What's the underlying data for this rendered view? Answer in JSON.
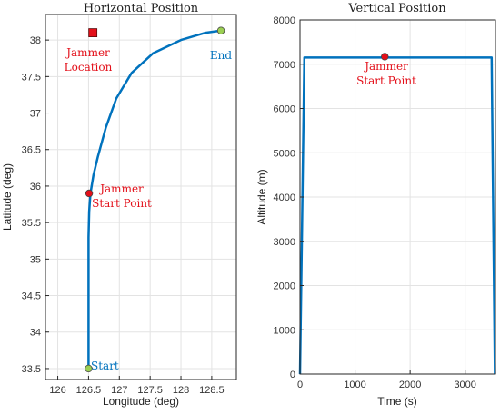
{
  "colors": {
    "line": "#0072BD",
    "jammer": "#E3101A",
    "end_marker": "#9BCF53",
    "grid": "#E3E3E3",
    "axes": "#262626"
  },
  "chart_data": [
    {
      "type": "line",
      "title": "Horizontal Position",
      "xlabel": "Longitude (deg)",
      "ylabel": "Latitude (deg)",
      "xlim": [
        125.8,
        128.9
      ],
      "ylim": [
        33.35,
        38.35
      ],
      "xticks": [
        "126",
        "126.5",
        "127",
        "127.5",
        "128",
        "128.5"
      ],
      "yticks": [
        "33.5",
        "34",
        "34.5",
        "35",
        "35.5",
        "36",
        "36.5",
        "37",
        "37.5",
        "38"
      ],
      "grid": true,
      "series": [
        {
          "x": [
            126.5,
            126.5,
            126.5,
            126.51,
            126.53,
            126.58,
            126.65,
            126.78,
            126.95,
            127.2,
            127.55,
            128.0,
            128.4,
            128.65
          ],
          "y": [
            33.5,
            34.5,
            35.3,
            35.65,
            35.9,
            36.15,
            36.4,
            36.8,
            37.2,
            37.55,
            37.82,
            38.0,
            38.1,
            38.13
          ]
        }
      ],
      "markers": [
        {
          "label": "Start",
          "x": 126.5,
          "y": 33.5,
          "color": "end_marker"
        },
        {
          "label": "End",
          "x": 128.65,
          "y": 38.13,
          "color": "end_marker"
        },
        {
          "label": "Jammer Start Point",
          "x": 126.51,
          "y": 35.9,
          "color": "jammer"
        },
        {
          "label": "Jammer Location",
          "x": 126.57,
          "y": 38.1,
          "color": "jammer",
          "shape": "square"
        }
      ],
      "annotations": {
        "jammer_location": [
          "Jammer",
          "Location"
        ],
        "jammer_start": [
          "Jammer",
          "Start Point"
        ],
        "start": "Start",
        "end": "End"
      }
    },
    {
      "type": "line",
      "title": "Vertical Position",
      "xlabel": "Time (s)",
      "ylabel": "Altitude (m)",
      "xlim": [
        0,
        3550
      ],
      "ylim": [
        0,
        8000
      ],
      "xticks": [
        "0",
        "1000",
        "2000",
        "3000"
      ],
      "yticks": [
        "0",
        "1000",
        "2000",
        "3000",
        "4000",
        "5000",
        "6000",
        "7000",
        "8000"
      ],
      "grid": true,
      "series": [
        {
          "x": [
            0,
            80,
            3480,
            3540
          ],
          "y": [
            0,
            7150,
            7150,
            0
          ]
        }
      ],
      "markers": [
        {
          "label": "Jammer Start Point",
          "x": 1540,
          "y": 7170,
          "color": "jammer"
        }
      ],
      "annotations": {
        "jammer_start": [
          "Jammer",
          "Start Point"
        ]
      }
    }
  ]
}
